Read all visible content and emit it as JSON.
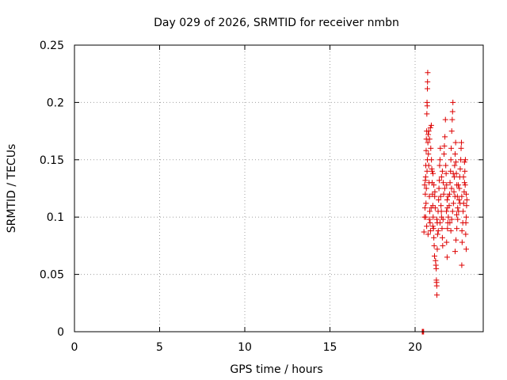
{
  "chart_data": {
    "type": "scatter",
    "title": "Day 029 of 2026, SRMTID for receiver nmbn",
    "xlabel": "GPS time / hours",
    "ylabel": "SRMTID / TECUs",
    "xlim": [
      0,
      24
    ],
    "ylim": [
      0,
      0.25
    ],
    "x_ticks": [
      0,
      5,
      10,
      15,
      20
    ],
    "x_tick_labels": [
      "0",
      "5",
      "10",
      "15",
      "20"
    ],
    "y_ticks": [
      0,
      0.05,
      0.1,
      0.15,
      0.2,
      0.25
    ],
    "y_tick_labels": [
      "0",
      "0.05",
      "0.1",
      "0.15",
      "0.2",
      "0.25"
    ],
    "grid": true,
    "marker": "+",
    "point_color": "#dd0000",
    "series": [
      {
        "name": "SRMTID",
        "points": [
          [
            20.42,
            0.0
          ],
          [
            20.5,
            0.0
          ],
          [
            20.46,
            0.0
          ],
          [
            20.52,
            0.087
          ],
          [
            20.55,
            0.1
          ],
          [
            20.58,
            0.108
          ],
          [
            20.6,
            0.12
          ],
          [
            20.62,
            0.135
          ],
          [
            20.63,
            0.145
          ],
          [
            20.65,
            0.158
          ],
          [
            20.66,
            0.168
          ],
          [
            20.68,
            0.175
          ],
          [
            20.69,
            0.19
          ],
          [
            20.7,
            0.2
          ],
          [
            20.71,
            0.197
          ],
          [
            20.72,
            0.212
          ],
          [
            20.73,
            0.218
          ],
          [
            20.74,
            0.226
          ],
          [
            20.62,
            0.1
          ],
          [
            20.64,
            0.112
          ],
          [
            20.66,
            0.125
          ],
          [
            20.7,
            0.14
          ],
          [
            20.72,
            0.15
          ],
          [
            20.75,
            0.165
          ],
          [
            20.77,
            0.172
          ],
          [
            20.78,
            0.155
          ],
          [
            20.8,
            0.145
          ],
          [
            20.82,
            0.13
          ],
          [
            20.84,
            0.118
          ],
          [
            20.86,
            0.105
          ],
          [
            20.88,
            0.095
          ],
          [
            20.9,
            0.088
          ],
          [
            20.8,
            0.175
          ],
          [
            20.85,
            0.168
          ],
          [
            20.9,
            0.178
          ],
          [
            20.95,
            0.18
          ],
          [
            20.92,
            0.16
          ],
          [
            20.96,
            0.15
          ],
          [
            20.98,
            0.142
          ],
          [
            21.0,
            0.13
          ],
          [
            21.02,
            0.12
          ],
          [
            21.04,
            0.11
          ],
          [
            21.06,
            0.1
          ],
          [
            21.08,
            0.09
          ],
          [
            21.1,
            0.082
          ],
          [
            21.12,
            0.075
          ],
          [
            21.14,
            0.066
          ],
          [
            21.0,
            0.14
          ],
          [
            21.05,
            0.138
          ],
          [
            21.1,
            0.128
          ],
          [
            21.15,
            0.118
          ],
          [
            21.18,
            0.108
          ],
          [
            21.2,
            0.062
          ],
          [
            21.22,
            0.058
          ],
          [
            21.24,
            0.055
          ],
          [
            21.25,
            0.045
          ],
          [
            21.26,
            0.043
          ],
          [
            21.27,
            0.04
          ],
          [
            21.28,
            0.032
          ],
          [
            21.3,
            0.072
          ],
          [
            21.32,
            0.085
          ],
          [
            21.3,
            0.095
          ],
          [
            21.35,
            0.105
          ],
          [
            21.38,
            0.115
          ],
          [
            21.4,
            0.125
          ],
          [
            21.42,
            0.132
          ],
          [
            21.44,
            0.145
          ],
          [
            21.46,
            0.15
          ],
          [
            21.48,
            0.16
          ],
          [
            21.5,
            0.118
          ],
          [
            21.52,
            0.11
          ],
          [
            21.55,
            0.1
          ],
          [
            21.58,
            0.09
          ],
          [
            21.6,
            0.082
          ],
          [
            21.62,
            0.075
          ],
          [
            21.55,
            0.135
          ],
          [
            21.6,
            0.14
          ],
          [
            21.65,
            0.13
          ],
          [
            21.68,
            0.12
          ],
          [
            21.7,
            0.155
          ],
          [
            21.72,
            0.162
          ],
          [
            21.75,
            0.17
          ],
          [
            21.78,
            0.185
          ],
          [
            21.8,
            0.145
          ],
          [
            21.82,
            0.138
          ],
          [
            21.85,
            0.128
          ],
          [
            21.88,
            0.115
          ],
          [
            21.9,
            0.108
          ],
          [
            21.92,
            0.095
          ],
          [
            21.85,
            0.078
          ],
          [
            21.88,
            0.065
          ],
          [
            21.9,
            0.09
          ],
          [
            21.95,
            0.1
          ],
          [
            22.0,
            0.11
          ],
          [
            22.02,
            0.12
          ],
          [
            22.05,
            0.13
          ],
          [
            22.08,
            0.14
          ],
          [
            22.1,
            0.15
          ],
          [
            22.12,
            0.16
          ],
          [
            22.15,
            0.175
          ],
          [
            22.18,
            0.185
          ],
          [
            22.2,
            0.192
          ],
          [
            22.22,
            0.2
          ],
          [
            22.1,
            0.088
          ],
          [
            22.15,
            0.098
          ],
          [
            22.2,
            0.105
          ],
          [
            22.25,
            0.112
          ],
          [
            22.28,
            0.122
          ],
          [
            22.3,
            0.135
          ],
          [
            22.32,
            0.145
          ],
          [
            22.35,
            0.155
          ],
          [
            22.38,
            0.165
          ],
          [
            22.4,
            0.148
          ],
          [
            22.42,
            0.138
          ],
          [
            22.45,
            0.128
          ],
          [
            22.48,
            0.118
          ],
          [
            22.5,
            0.108
          ],
          [
            22.35,
            0.07
          ],
          [
            22.4,
            0.08
          ],
          [
            22.45,
            0.09
          ],
          [
            22.5,
            0.098
          ],
          [
            22.55,
            0.105
          ],
          [
            22.58,
            0.115
          ],
          [
            22.6,
            0.125
          ],
          [
            22.62,
            0.135
          ],
          [
            22.65,
            0.142
          ],
          [
            22.68,
            0.15
          ],
          [
            22.7,
            0.16
          ],
          [
            22.72,
            0.165
          ],
          [
            22.74,
            0.058
          ],
          [
            22.76,
            0.078
          ],
          [
            22.75,
            0.088
          ],
          [
            22.8,
            0.095
          ],
          [
            22.82,
            0.105
          ],
          [
            22.85,
            0.112
          ],
          [
            22.88,
            0.122
          ],
          [
            22.9,
            0.13
          ],
          [
            22.92,
            0.14
          ],
          [
            22.95,
            0.15
          ],
          [
            22.97,
            0.085
          ],
          [
            23.0,
            0.072
          ],
          [
            23.0,
            0.1
          ],
          [
            23.02,
            0.11
          ],
          [
            23.0,
            0.12
          ],
          [
            22.98,
            0.095
          ],
          [
            20.56,
            0.128
          ],
          [
            20.6,
            0.132
          ],
          [
            20.68,
            0.092
          ],
          [
            20.76,
            0.085
          ],
          [
            20.84,
            0.098
          ],
          [
            20.94,
            0.108
          ],
          [
            21.04,
            0.092
          ],
          [
            21.16,
            0.122
          ],
          [
            21.28,
            0.098
          ],
          [
            21.36,
            0.088
          ],
          [
            21.46,
            0.095
          ],
          [
            21.54,
            0.105
          ],
          [
            21.64,
            0.098
          ],
          [
            21.74,
            0.125
          ],
          [
            21.84,
            0.105
          ],
          [
            21.94,
            0.118
          ],
          [
            22.04,
            0.095
          ],
          [
            22.14,
            0.125
          ],
          [
            22.24,
            0.138
          ],
          [
            22.34,
            0.118
          ],
          [
            22.44,
            0.102
          ],
          [
            22.54,
            0.128
          ],
          [
            22.64,
            0.112
          ],
          [
            22.74,
            0.118
          ],
          [
            22.84,
            0.135
          ],
          [
            22.94,
            0.128
          ],
          [
            23.04,
            0.115
          ],
          [
            22.9,
            0.148
          ]
        ]
      }
    ]
  }
}
